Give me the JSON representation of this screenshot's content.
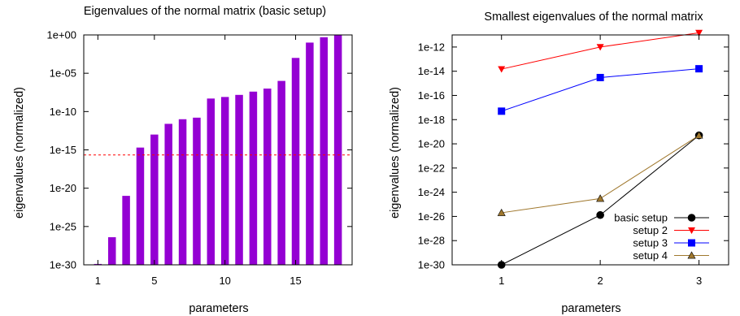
{
  "chart_data": [
    {
      "type": "bar",
      "title": "Eigenvalues of the normal matrix (basic setup)",
      "xlabel": "parameters",
      "ylabel": "eigenvalues (normalized)",
      "yscale": "log",
      "ylim": [
        1e-30,
        1
      ],
      "ytick_values": [
        1e-30,
        1e-25,
        1e-20,
        1e-15,
        1e-10,
        1e-05,
        1
      ],
      "ytick_labels": [
        "1e-30",
        "1e-25",
        "1e-20",
        "1e-15",
        "1e-10",
        "1e-05",
        "1e+00"
      ],
      "xlim": [
        0,
        19
      ],
      "xtick_values": [
        1,
        5,
        10,
        15
      ],
      "xtick_labels": [
        "1",
        "5",
        "10",
        "15"
      ],
      "x": [
        1,
        2,
        3,
        4,
        5,
        6,
        7,
        8,
        9,
        10,
        11,
        12,
        13,
        14,
        15,
        16,
        17,
        18
      ],
      "values": [
        1.3e-30,
        4e-27,
        1e-21,
        2e-15,
        1e-13,
        2.5e-12,
        1e-11,
        1.6e-11,
        5e-09,
        8e-09,
        1.5e-08,
        4e-08,
        1e-07,
        1e-06,
        0.001,
        0.1,
        0.5,
        1
      ],
      "bar_color": "#9400d3",
      "threshold_line": 2.2e-16,
      "threshold_color": "#ff0000",
      "grid": false,
      "legend": "none"
    },
    {
      "type": "line",
      "title": "Smallest eigenvalues of the normal matrix",
      "xlabel": "parameters",
      "ylabel": "eigenvalues (normalized)",
      "yscale": "log",
      "ylim": [
        1e-30,
        1e-11
      ],
      "ytick_values": [
        1e-30,
        1e-28,
        1e-26,
        1e-24,
        1e-22,
        1e-20,
        1e-18,
        1e-16,
        1e-14,
        1e-12
      ],
      "ytick_labels": [
        "1e-30",
        "1e-28",
        "1e-26",
        "1e-24",
        "1e-22",
        "1e-20",
        "1e-18",
        "1e-16",
        "1e-14",
        "1e-12"
      ],
      "xlim": [
        0.5,
        3.3
      ],
      "xtick_values": [
        1,
        2,
        3
      ],
      "xtick_labels": [
        "1",
        "2",
        "3"
      ],
      "legend": "bottom-right",
      "grid": false,
      "series": [
        {
          "name": "basic setup",
          "marker": "circle",
          "color": "#000000",
          "x": [
            1,
            2,
            3
          ],
          "values": [
            1e-30,
            1.3e-26,
            5e-20
          ]
        },
        {
          "name": "setup 2",
          "marker": "triangle-down",
          "color": "#ff0000",
          "x": [
            1,
            2,
            3
          ],
          "values": [
            1.5e-14,
            1e-12,
            1.5e-11
          ]
        },
        {
          "name": "setup 3",
          "marker": "square",
          "color": "#0000ff",
          "x": [
            1,
            2,
            3
          ],
          "values": [
            5e-18,
            3e-15,
            1.6e-14
          ]
        },
        {
          "name": "setup 4",
          "marker": "triangle-up",
          "color": "#a0782e",
          "x": [
            1,
            2,
            3
          ],
          "values": [
            2e-26,
            3e-25,
            5e-20
          ]
        }
      ]
    }
  ]
}
